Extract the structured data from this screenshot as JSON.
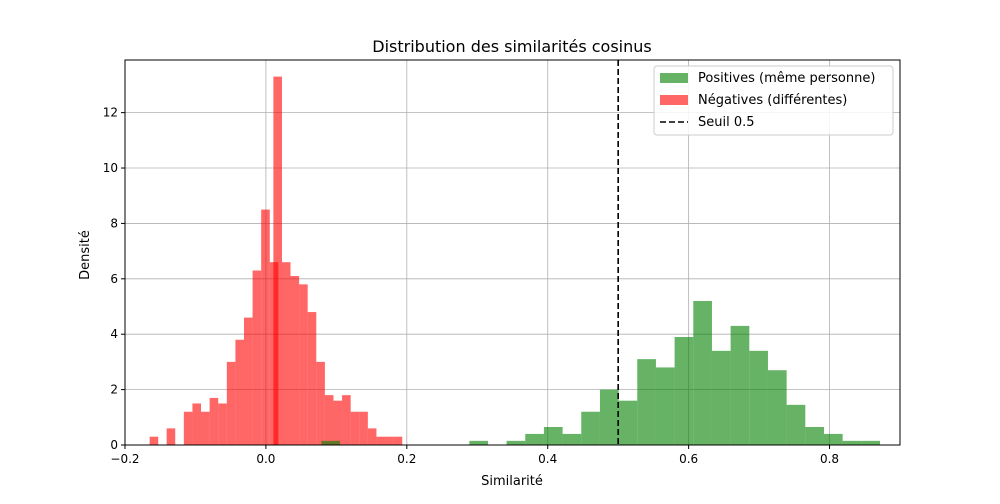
{
  "chart_data": {
    "type": "bar",
    "title": "Distribution des similarités cosinus",
    "xlabel": "Similarité",
    "ylabel": "Densité",
    "xlim": [
      -0.2,
      0.9
    ],
    "ylim": [
      0,
      13.9
    ],
    "xticks": [
      -0.2,
      0.0,
      0.2,
      0.4,
      0.6,
      0.8
    ],
    "xtick_labels": [
      "−0.2",
      "0.0",
      "0.2",
      "0.4",
      "0.6",
      "0.8"
    ],
    "yticks": [
      0,
      2,
      4,
      6,
      8,
      10,
      12
    ],
    "ytick_labels": [
      "0",
      "2",
      "4",
      "6",
      "8",
      "10",
      "12"
    ],
    "grid": true,
    "legend_position": "top-right",
    "threshold": {
      "name": "Seuil 0.5",
      "x": 0.5,
      "color": "#000000"
    },
    "series": [
      {
        "name": "Négatives (différentes)",
        "color": "#ff0000",
        "alpha": 0.6,
        "bin_width": 0.0122,
        "bins": [
          {
            "x": -0.165,
            "y": 0.3
          },
          {
            "x": -0.1409,
            "y": 0.6
          },
          {
            "x": -0.1165,
            "y": 1.2
          },
          {
            "x": -0.1043,
            "y": 1.5
          },
          {
            "x": -0.0921,
            "y": 1.2
          },
          {
            "x": -0.0799,
            "y": 1.7
          },
          {
            "x": -0.0677,
            "y": 1.5
          },
          {
            "x": -0.0555,
            "y": 3.0
          },
          {
            "x": -0.0433,
            "y": 3.8
          },
          {
            "x": -0.0311,
            "y": 4.6
          },
          {
            "x": -0.0189,
            "y": 6.3
          },
          {
            "x": -0.0067,
            "y": 8.5
          },
          {
            "x": 0.0055,
            "y": 6.6
          },
          {
            "x": 0.0106,
            "y": 13.3
          },
          {
            "x": 0.0227,
            "y": 6.6
          },
          {
            "x": 0.0349,
            "y": 6.1
          },
          {
            "x": 0.0471,
            "y": 5.8
          },
          {
            "x": 0.0593,
            "y": 4.8
          },
          {
            "x": 0.0715,
            "y": 3.0
          },
          {
            "x": 0.0837,
            "y": 1.8
          },
          {
            "x": 0.0959,
            "y": 1.6
          },
          {
            "x": 0.1081,
            "y": 1.8
          },
          {
            "x": 0.1203,
            "y": 1.2
          },
          {
            "x": 0.1325,
            "y": 1.2
          },
          {
            "x": 0.1447,
            "y": 0.6
          },
          {
            "x": 0.1569,
            "y": 0.3
          },
          {
            "x": 0.1691,
            "y": 0.3
          },
          {
            "x": 0.1813,
            "y": 0.3
          }
        ]
      },
      {
        "name": "Positives (même personne)",
        "color": "#008000",
        "alpha": 0.6,
        "bin_width": 0.0265,
        "bins": [
          {
            "x": 0.0787,
            "y": 0.15
          },
          {
            "x": 0.2888,
            "y": 0.15
          },
          {
            "x": 0.3416,
            "y": 0.15
          },
          {
            "x": 0.3681,
            "y": 0.4
          },
          {
            "x": 0.3946,
            "y": 0.65
          },
          {
            "x": 0.4211,
            "y": 0.4
          },
          {
            "x": 0.4476,
            "y": 1.2
          },
          {
            "x": 0.4741,
            "y": 2.0
          },
          {
            "x": 0.5006,
            "y": 1.6
          },
          {
            "x": 0.5271,
            "y": 3.1
          },
          {
            "x": 0.5536,
            "y": 2.8
          },
          {
            "x": 0.5801,
            "y": 3.9
          },
          {
            "x": 0.6066,
            "y": 5.2
          },
          {
            "x": 0.6331,
            "y": 3.4
          },
          {
            "x": 0.6596,
            "y": 4.3
          },
          {
            "x": 0.6861,
            "y": 3.4
          },
          {
            "x": 0.7126,
            "y": 2.7
          },
          {
            "x": 0.7391,
            "y": 1.45
          },
          {
            "x": 0.7656,
            "y": 0.65
          },
          {
            "x": 0.7921,
            "y": 0.4
          },
          {
            "x": 0.8186,
            "y": 0.15
          },
          {
            "x": 0.8451,
            "y": 0.15
          }
        ]
      }
    ],
    "legend": [
      {
        "label": "Positives (même personne)",
        "kind": "patch",
        "color": "#008000"
      },
      {
        "label": "Négatives (différentes)",
        "kind": "patch",
        "color": "#ff0000"
      },
      {
        "label": "Seuil 0.5",
        "kind": "dashed-line",
        "color": "#000000"
      }
    ]
  }
}
